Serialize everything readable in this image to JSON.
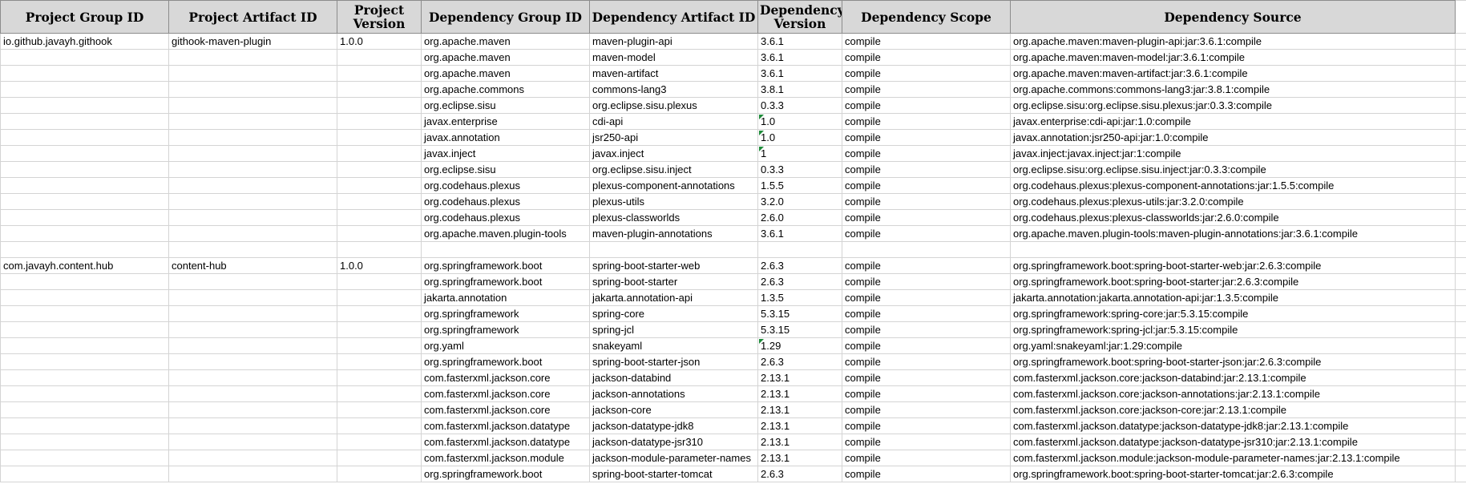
{
  "headers": [
    "Project Group ID",
    "Project Artifact ID",
    "Project Version",
    "Dependency Group ID",
    "Dependency Artifact ID",
    "Dependency Version",
    "Dependency Scope",
    "Dependency Source"
  ],
  "rows": [
    [
      "io.github.javayh.githook",
      "githook-maven-plugin",
      "1.0.0",
      "org.apache.maven",
      "maven-plugin-api",
      "3.6.1",
      "compile",
      "org.apache.maven:maven-plugin-api:jar:3.6.1:compile"
    ],
    [
      "",
      "",
      "",
      "org.apache.maven",
      "maven-model",
      "3.6.1",
      "compile",
      "org.apache.maven:maven-model:jar:3.6.1:compile"
    ],
    [
      "",
      "",
      "",
      "org.apache.maven",
      "maven-artifact",
      "3.6.1",
      "compile",
      "org.apache.maven:maven-artifact:jar:3.6.1:compile"
    ],
    [
      "",
      "",
      "",
      "org.apache.commons",
      "commons-lang3",
      "3.8.1",
      "compile",
      "org.apache.commons:commons-lang3:jar:3.8.1:compile"
    ],
    [
      "",
      "",
      "",
      "org.eclipse.sisu",
      "org.eclipse.sisu.plexus",
      "0.3.3",
      "compile",
      "org.eclipse.sisu:org.eclipse.sisu.plexus:jar:0.3.3:compile"
    ],
    [
      "",
      "",
      "",
      "javax.enterprise",
      "cdi-api",
      "1.0",
      "compile",
      "javax.enterprise:cdi-api:jar:1.0:compile"
    ],
    [
      "",
      "",
      "",
      "javax.annotation",
      "jsr250-api",
      "1.0",
      "compile",
      "javax.annotation:jsr250-api:jar:1.0:compile"
    ],
    [
      "",
      "",
      "",
      "javax.inject",
      "javax.inject",
      "1",
      "compile",
      "javax.inject:javax.inject:jar:1:compile"
    ],
    [
      "",
      "",
      "",
      "org.eclipse.sisu",
      "org.eclipse.sisu.inject",
      "0.3.3",
      "compile",
      "org.eclipse.sisu:org.eclipse.sisu.inject:jar:0.3.3:compile"
    ],
    [
      "",
      "",
      "",
      "org.codehaus.plexus",
      "plexus-component-annotations",
      "1.5.5",
      "compile",
      "org.codehaus.plexus:plexus-component-annotations:jar:1.5.5:compile"
    ],
    [
      "",
      "",
      "",
      "org.codehaus.plexus",
      "plexus-utils",
      "3.2.0",
      "compile",
      "org.codehaus.plexus:plexus-utils:jar:3.2.0:compile"
    ],
    [
      "",
      "",
      "",
      "org.codehaus.plexus",
      "plexus-classworlds",
      "2.6.0",
      "compile",
      "org.codehaus.plexus:plexus-classworlds:jar:2.6.0:compile"
    ],
    [
      "",
      "",
      "",
      "org.apache.maven.plugin-tools",
      "maven-plugin-annotations",
      "3.6.1",
      "compile",
      "org.apache.maven.plugin-tools:maven-plugin-annotations:jar:3.6.1:compile"
    ],
    [
      "",
      "",
      "",
      "",
      "",
      "",
      "",
      ""
    ],
    [
      "com.javayh.content.hub",
      "content-hub",
      "1.0.0",
      "org.springframework.boot",
      "spring-boot-starter-web",
      "2.6.3",
      "compile",
      "org.springframework.boot:spring-boot-starter-web:jar:2.6.3:compile"
    ],
    [
      "",
      "",
      "",
      "org.springframework.boot",
      "spring-boot-starter",
      "2.6.3",
      "compile",
      "org.springframework.boot:spring-boot-starter:jar:2.6.3:compile"
    ],
    [
      "",
      "",
      "",
      "jakarta.annotation",
      "jakarta.annotation-api",
      "1.3.5",
      "compile",
      "jakarta.annotation:jakarta.annotation-api:jar:1.3.5:compile"
    ],
    [
      "",
      "",
      "",
      "org.springframework",
      "spring-core",
      "5.3.15",
      "compile",
      "org.springframework:spring-core:jar:5.3.15:compile"
    ],
    [
      "",
      "",
      "",
      "org.springframework",
      "spring-jcl",
      "5.3.15",
      "compile",
      "org.springframework:spring-jcl:jar:5.3.15:compile"
    ],
    [
      "",
      "",
      "",
      "org.yaml",
      "snakeyaml",
      "1.29",
      "compile",
      "org.yaml:snakeyaml:jar:1.29:compile"
    ],
    [
      "",
      "",
      "",
      "org.springframework.boot",
      "spring-boot-starter-json",
      "2.6.3",
      "compile",
      "org.springframework.boot:spring-boot-starter-json:jar:2.6.3:compile"
    ],
    [
      "",
      "",
      "",
      "com.fasterxml.jackson.core",
      "jackson-databind",
      "2.13.1",
      "compile",
      "com.fasterxml.jackson.core:jackson-databind:jar:2.13.1:compile"
    ],
    [
      "",
      "",
      "",
      "com.fasterxml.jackson.core",
      "jackson-annotations",
      "2.13.1",
      "compile",
      "com.fasterxml.jackson.core:jackson-annotations:jar:2.13.1:compile"
    ],
    [
      "",
      "",
      "",
      "com.fasterxml.jackson.core",
      "jackson-core",
      "2.13.1",
      "compile",
      "com.fasterxml.jackson.core:jackson-core:jar:2.13.1:compile"
    ],
    [
      "",
      "",
      "",
      "com.fasterxml.jackson.datatype",
      "jackson-datatype-jdk8",
      "2.13.1",
      "compile",
      "com.fasterxml.jackson.datatype:jackson-datatype-jdk8:jar:2.13.1:compile"
    ],
    [
      "",
      "",
      "",
      "com.fasterxml.jackson.datatype",
      "jackson-datatype-jsr310",
      "2.13.1",
      "compile",
      "com.fasterxml.jackson.datatype:jackson-datatype-jsr310:jar:2.13.1:compile"
    ],
    [
      "",
      "",
      "",
      "com.fasterxml.jackson.module",
      "jackson-module-parameter-names",
      "2.13.1",
      "compile",
      "com.fasterxml.jackson.module:jackson-module-parameter-names:jar:2.13.1:compile"
    ],
    [
      "",
      "",
      "",
      "org.springframework.boot",
      "spring-boot-starter-tomcat",
      "2.6.3",
      "compile",
      "org.springframework.boot:spring-boot-starter-tomcat:jar:2.6.3:compile"
    ]
  ],
  "text_number_cells": [
    {
      "row": 5,
      "col": 5
    },
    {
      "row": 6,
      "col": 5
    },
    {
      "row": 7,
      "col": 5
    },
    {
      "row": 19,
      "col": 5
    }
  ],
  "colors": {
    "header_bg": "#d8d8d8",
    "header_border": "#8c8c8c",
    "grid_line": "#d4d4d4",
    "error_indicator": "#1e8c3a"
  }
}
